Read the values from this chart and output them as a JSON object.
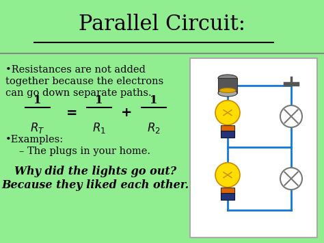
{
  "title": "Parallel Circuit:",
  "bg_color": "#90EE90",
  "text_color": "#000000",
  "title_fontsize": 22,
  "body_fontsize": 10.5,
  "formula_fontsize": 12,
  "joke_fontsize": 11.5,
  "bullet1_line1": "•Resistances are not added",
  "bullet1_line2": "together because the electrons",
  "bullet1_line3": "can go down separate paths.",
  "bullet2": "•Examples:",
  "sub_bullet": "– The plugs in your home.",
  "joke_line1": "Why did the lights go out?",
  "joke_line2": "Because they liked each other.",
  "circuit_bg": "#ffffff",
  "circuit_border": "#aaaaaa",
  "wire_color": "#1177dd",
  "wire_lw": 2.0,
  "separator_color": "#888888"
}
